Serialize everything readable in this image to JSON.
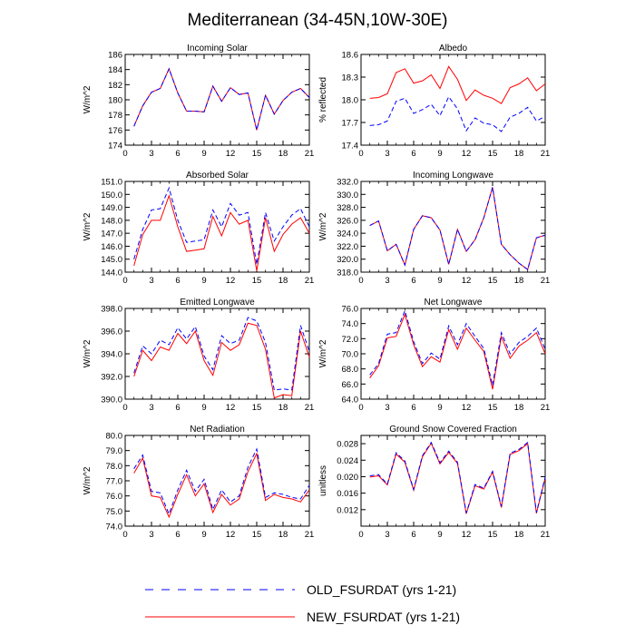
{
  "title": "Mediterranean (34-45N,10W-30E)",
  "colors": {
    "old": "#0000ff",
    "new": "#ff0000",
    "axis": "#000000"
  },
  "legend": [
    {
      "key": "old",
      "label": "OLD_FSURDAT (yrs 1-21)",
      "style": "dashed"
    },
    {
      "key": "new",
      "label": "NEW_FSURDAT (yrs 1-21)",
      "style": "solid"
    }
  ],
  "chart_data": [
    {
      "type": "line",
      "title": "Incoming Solar",
      "ylabel": "W/m^2",
      "xlim": [
        0,
        21
      ],
      "xticks": [
        0,
        3,
        6,
        9,
        12,
        15,
        18,
        21
      ],
      "ylim": [
        174,
        186
      ],
      "yticks": [
        174,
        176,
        178,
        180,
        182,
        184,
        186
      ],
      "ytick_labels": [
        "174",
        "176",
        "178",
        "180",
        "182",
        "184",
        "186"
      ],
      "x": [
        1,
        2,
        3,
        4,
        5,
        6,
        7,
        8,
        9,
        10,
        11,
        12,
        13,
        14,
        15,
        16,
        17,
        18,
        19,
        20,
        21
      ],
      "series": [
        {
          "name": "OLD_FSURDAT (yrs 1-21)",
          "values": [
            176.5,
            179.2,
            181.0,
            181.5,
            184.1,
            180.9,
            178.5,
            178.5,
            178.4,
            181.8,
            179.8,
            181.6,
            180.7,
            180.9,
            176.0,
            180.6,
            178.1,
            179.9,
            181.0,
            181.5,
            180.3
          ]
        },
        {
          "name": "NEW_FSURDAT (yrs 1-21)",
          "values": [
            176.5,
            179.2,
            181.0,
            181.5,
            184.1,
            180.9,
            178.5,
            178.5,
            178.4,
            181.8,
            179.8,
            181.6,
            180.7,
            180.9,
            176.0,
            180.6,
            178.1,
            179.9,
            181.0,
            181.5,
            180.3
          ]
        }
      ]
    },
    {
      "type": "line",
      "title": "Albedo",
      "ylabel": "% reflected",
      "xlim": [
        0,
        21
      ],
      "xticks": [
        0,
        3,
        6,
        9,
        12,
        15,
        18,
        21
      ],
      "ylim": [
        17.4,
        18.6
      ],
      "yticks": [
        17.4,
        17.7,
        18.0,
        18.3,
        18.6
      ],
      "ytick_labels": [
        "17.4",
        "17.7",
        "18.0",
        "18.3",
        "18.6"
      ],
      "x": [
        1,
        2,
        3,
        4,
        5,
        6,
        7,
        8,
        9,
        10,
        11,
        12,
        13,
        14,
        15,
        16,
        17,
        18,
        19,
        20,
        21
      ],
      "series": [
        {
          "name": "OLD_FSURDAT (yrs 1-21)",
          "values": [
            17.66,
            17.67,
            17.72,
            17.98,
            18.02,
            17.82,
            17.87,
            17.94,
            17.79,
            18.04,
            17.88,
            17.59,
            17.76,
            17.69,
            17.67,
            17.58,
            17.77,
            17.82,
            17.9,
            17.72,
            17.78
          ]
        },
        {
          "name": "NEW_FSURDAT (yrs 1-21)",
          "values": [
            18.02,
            18.03,
            18.08,
            18.36,
            18.41,
            18.22,
            18.25,
            18.33,
            18.15,
            18.44,
            18.27,
            17.99,
            18.13,
            18.06,
            18.02,
            17.95,
            18.16,
            18.21,
            18.29,
            18.12,
            18.21
          ]
        }
      ]
    },
    {
      "type": "line",
      "title": "Absorbed Solar",
      "ylabel": "W/m^2",
      "xlim": [
        0,
        21
      ],
      "xticks": [
        0,
        3,
        6,
        9,
        12,
        15,
        18,
        21
      ],
      "ylim": [
        144,
        151
      ],
      "yticks": [
        144,
        145,
        146,
        147,
        148,
        149,
        150,
        151
      ],
      "ytick_labels": [
        "144.0",
        "145.0",
        "146.0",
        "147.0",
        "148.0",
        "149.0",
        "150.0",
        "151.0"
      ],
      "x": [
        1,
        2,
        3,
        4,
        5,
        6,
        7,
        8,
        9,
        10,
        11,
        12,
        13,
        14,
        15,
        16,
        17,
        18,
        19,
        20,
        21
      ],
      "series": [
        {
          "name": "OLD_FSURDAT (yrs 1-21)",
          "values": [
            145.0,
            147.3,
            148.8,
            148.9,
            150.5,
            148.0,
            146.3,
            146.4,
            146.5,
            148.8,
            147.5,
            149.3,
            148.4,
            148.6,
            144.6,
            148.6,
            146.4,
            147.5,
            148.4,
            148.9,
            147.5
          ]
        },
        {
          "name": "NEW_FSURDAT (yrs 1-21)",
          "values": [
            144.5,
            146.9,
            148.0,
            148.0,
            149.9,
            147.5,
            145.6,
            145.7,
            145.8,
            148.3,
            146.8,
            148.6,
            147.7,
            148.0,
            144.1,
            148.2,
            145.6,
            146.9,
            147.7,
            148.2,
            147.0
          ]
        }
      ]
    },
    {
      "type": "line",
      "title": "Incoming Longwave",
      "ylabel": "W/m^2",
      "xlim": [
        0,
        21
      ],
      "xticks": [
        0,
        3,
        6,
        9,
        12,
        15,
        18,
        21
      ],
      "ylim": [
        318,
        332
      ],
      "yticks": [
        318,
        320,
        322,
        324,
        326,
        328,
        330,
        332
      ],
      "ytick_labels": [
        "318.0",
        "320.0",
        "322.0",
        "324.0",
        "326.0",
        "328.0",
        "330.0",
        "332.0"
      ],
      "x": [
        1,
        2,
        3,
        4,
        5,
        6,
        7,
        8,
        9,
        10,
        11,
        12,
        13,
        14,
        15,
        16,
        17,
        18,
        19,
        20,
        21
      ],
      "series": [
        {
          "name": "OLD_FSURDAT (yrs 1-21)",
          "values": [
            325.2,
            325.9,
            321.3,
            322.3,
            319.1,
            324.6,
            326.7,
            326.4,
            324.5,
            319.2,
            324.6,
            321.2,
            323.0,
            326.4,
            331.1,
            322.3,
            320.7,
            319.4,
            318.4,
            323.3,
            323.7
          ]
        },
        {
          "name": "NEW_FSURDAT (yrs 1-21)",
          "values": [
            325.2,
            325.9,
            321.3,
            322.3,
            319.1,
            324.6,
            326.7,
            326.4,
            324.5,
            319.2,
            324.6,
            321.2,
            323.0,
            326.4,
            331.1,
            322.3,
            320.7,
            319.4,
            318.4,
            323.3,
            323.7
          ]
        }
      ]
    },
    {
      "type": "line",
      "title": "Emitted Longwave",
      "ylabel": "W/m^2",
      "xlim": [
        0,
        21
      ],
      "xticks": [
        0,
        3,
        6,
        9,
        12,
        15,
        18,
        21
      ],
      "ylim": [
        390,
        398
      ],
      "yticks": [
        390,
        392,
        394,
        396,
        398
      ],
      "ytick_labels": [
        "390.0",
        "392.0",
        "394.0",
        "396.0",
        "398.0"
      ],
      "x": [
        1,
        2,
        3,
        4,
        5,
        6,
        7,
        8,
        9,
        10,
        11,
        12,
        13,
        14,
        15,
        16,
        17,
        18,
        19,
        20,
        21
      ],
      "series": [
        {
          "name": "OLD_FSURDAT (yrs 1-21)",
          "values": [
            392.3,
            394.7,
            394.0,
            395.2,
            394.8,
            396.3,
            395.3,
            396.4,
            393.8,
            392.6,
            395.6,
            394.9,
            395.2,
            397.2,
            396.9,
            395.0,
            390.8,
            390.9,
            390.8,
            396.5,
            394.2
          ]
        },
        {
          "name": "NEW_FSURDAT (yrs 1-21)",
          "values": [
            392.0,
            394.3,
            393.4,
            394.6,
            394.3,
            395.8,
            394.9,
            396.0,
            393.4,
            392.1,
            395.0,
            394.3,
            394.8,
            396.7,
            396.5,
            394.4,
            390.1,
            390.4,
            390.3,
            396.0,
            393.7
          ]
        }
      ]
    },
    {
      "type": "line",
      "title": "Net Longwave",
      "ylabel": "W/m^2",
      "xlim": [
        0,
        21
      ],
      "xticks": [
        0,
        3,
        6,
        9,
        12,
        15,
        18,
        21
      ],
      "ylim": [
        64,
        76
      ],
      "yticks": [
        64,
        66,
        68,
        70,
        72,
        74,
        76
      ],
      "ytick_labels": [
        "64.0",
        "66.0",
        "68.0",
        "70.0",
        "72.0",
        "74.0",
        "76.0"
      ],
      "x": [
        1,
        2,
        3,
        4,
        5,
        6,
        7,
        8,
        9,
        10,
        11,
        12,
        13,
        14,
        15,
        16,
        17,
        18,
        19,
        20,
        21
      ],
      "series": [
        {
          "name": "OLD_FSURDAT (yrs 1-21)",
          "values": [
            67.2,
            68.7,
            72.6,
            72.8,
            75.7,
            71.6,
            68.7,
            70.1,
            69.3,
            73.7,
            71.2,
            74.0,
            72.3,
            70.7,
            65.8,
            72.8,
            70.0,
            71.5,
            72.3,
            73.4,
            70.6
          ]
        },
        {
          "name": "NEW_FSURDAT (yrs 1-21)",
          "values": [
            66.8,
            68.4,
            72.1,
            72.3,
            75.2,
            71.2,
            68.3,
            69.6,
            68.9,
            73.2,
            70.6,
            73.4,
            71.8,
            70.3,
            65.3,
            72.3,
            69.4,
            71.0,
            71.8,
            72.8,
            70.0
          ]
        }
      ]
    },
    {
      "type": "line",
      "title": "Net Radiation",
      "ylabel": "W/m^2",
      "xlim": [
        0,
        21
      ],
      "xticks": [
        0,
        3,
        6,
        9,
        12,
        15,
        18,
        21
      ],
      "ylim": [
        74,
        80
      ],
      "yticks": [
        74,
        75,
        76,
        77,
        78,
        79,
        80
      ],
      "ytick_labels": [
        "74.0",
        "75.0",
        "76.0",
        "77.0",
        "78.0",
        "79.0",
        "80.0"
      ],
      "x": [
        1,
        2,
        3,
        4,
        5,
        6,
        7,
        8,
        9,
        10,
        11,
        12,
        13,
        14,
        15,
        16,
        17,
        18,
        19,
        20,
        21
      ],
      "series": [
        {
          "name": "OLD_FSURDAT (yrs 1-21)",
          "values": [
            77.8,
            78.7,
            76.3,
            76.2,
            74.8,
            76.4,
            77.7,
            76.3,
            77.1,
            75.1,
            76.4,
            75.6,
            76.0,
            77.9,
            79.1,
            75.9,
            76.2,
            76.1,
            75.9,
            75.8,
            76.7
          ]
        },
        {
          "name": "NEW_FSURDAT (yrs 1-21)",
          "values": [
            77.5,
            78.5,
            76.0,
            75.9,
            74.6,
            76.1,
            77.4,
            76.0,
            76.8,
            74.9,
            76.1,
            75.4,
            75.8,
            77.6,
            78.8,
            75.7,
            76.1,
            75.9,
            75.8,
            75.6,
            76.4
          ]
        }
      ]
    },
    {
      "type": "line",
      "title": "Ground Snow Covered Fraction",
      "ylabel": "unitless",
      "xlim": [
        0,
        21
      ],
      "xticks": [
        0,
        3,
        6,
        9,
        12,
        15,
        18,
        21
      ],
      "ylim": [
        0.008,
        0.03
      ],
      "yticks": [
        0.012,
        0.016,
        0.02,
        0.024,
        0.028
      ],
      "ytick_labels": [
        "0.012",
        "0.016",
        "0.020",
        "0.024",
        "0.028"
      ],
      "x": [
        1,
        2,
        3,
        4,
        5,
        6,
        7,
        8,
        9,
        10,
        11,
        12,
        13,
        14,
        15,
        16,
        17,
        18,
        19,
        20,
        21
      ],
      "series": [
        {
          "name": "OLD_FSURDAT (yrs 1-21)",
          "values": [
            0.0202,
            0.0205,
            0.0182,
            0.0258,
            0.0238,
            0.0169,
            0.0251,
            0.0283,
            0.0234,
            0.0262,
            0.0235,
            0.0112,
            0.0181,
            0.0172,
            0.0213,
            0.0128,
            0.0257,
            0.0266,
            0.0283,
            0.0113,
            0.0199
          ]
        },
        {
          "name": "NEW_FSURDAT (yrs 1-21)",
          "values": [
            0.0199,
            0.0202,
            0.018,
            0.0255,
            0.0235,
            0.0167,
            0.0248,
            0.0281,
            0.0231,
            0.0259,
            0.0232,
            0.011,
            0.0178,
            0.017,
            0.0211,
            0.0125,
            0.0254,
            0.0263,
            0.028,
            0.0111,
            0.0197
          ]
        }
      ]
    }
  ]
}
